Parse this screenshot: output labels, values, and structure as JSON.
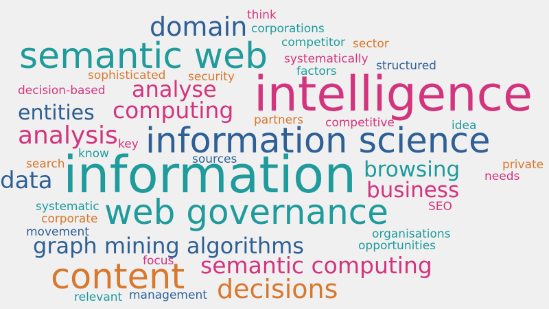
{
  "palette": {
    "pink": "#d3347e",
    "teal": "#1f9b9c",
    "blue": "#2e5f95",
    "orange": "#d8782e",
    "background": "#f0f0f0"
  },
  "words": [
    {
      "text": "think",
      "color": "pink"
    },
    {
      "text": "domain",
      "color": "blue"
    },
    {
      "text": "corporations",
      "color": "teal"
    },
    {
      "text": "semantic web",
      "color": "teal"
    },
    {
      "text": "competitor",
      "color": "teal"
    },
    {
      "text": "sector",
      "color": "orange"
    },
    {
      "text": "systematically",
      "color": "pink"
    },
    {
      "text": "structured",
      "color": "blue"
    },
    {
      "text": "factors",
      "color": "teal"
    },
    {
      "text": "sophisticated",
      "color": "orange"
    },
    {
      "text": "security",
      "color": "orange"
    },
    {
      "text": "intelligence",
      "color": "pink"
    },
    {
      "text": "decision-based",
      "color": "pink"
    },
    {
      "text": "analyse",
      "color": "pink"
    },
    {
      "text": "entities",
      "color": "blue"
    },
    {
      "text": "computing",
      "color": "pink"
    },
    {
      "text": "partners",
      "color": "orange"
    },
    {
      "text": "competitive",
      "color": "pink"
    },
    {
      "text": "idea",
      "color": "teal"
    },
    {
      "text": "analysis",
      "color": "pink"
    },
    {
      "text": "key",
      "color": "pink"
    },
    {
      "text": "information science",
      "color": "blue"
    },
    {
      "text": "know",
      "color": "teal"
    },
    {
      "text": "search",
      "color": "orange"
    },
    {
      "text": "sources",
      "color": "blue"
    },
    {
      "text": "browsing",
      "color": "teal"
    },
    {
      "text": "private",
      "color": "orange"
    },
    {
      "text": "data",
      "color": "blue"
    },
    {
      "text": "information",
      "color": "teal"
    },
    {
      "text": "needs",
      "color": "pink"
    },
    {
      "text": "business",
      "color": "pink"
    },
    {
      "text": "systematic",
      "color": "teal"
    },
    {
      "text": "SEO",
      "color": "pink"
    },
    {
      "text": "corporate",
      "color": "orange"
    },
    {
      "text": "web governance",
      "color": "teal"
    },
    {
      "text": "movement",
      "color": "blue"
    },
    {
      "text": "organisations",
      "color": "teal"
    },
    {
      "text": "graph mining algorithms",
      "color": "blue"
    },
    {
      "text": "opportunities",
      "color": "teal"
    },
    {
      "text": "focus",
      "color": "pink"
    },
    {
      "text": "semantic computing",
      "color": "pink"
    },
    {
      "text": "content",
      "color": "orange"
    },
    {
      "text": "decisions",
      "color": "orange"
    },
    {
      "text": "relevant",
      "color": "teal"
    },
    {
      "text": "management",
      "color": "blue"
    }
  ]
}
